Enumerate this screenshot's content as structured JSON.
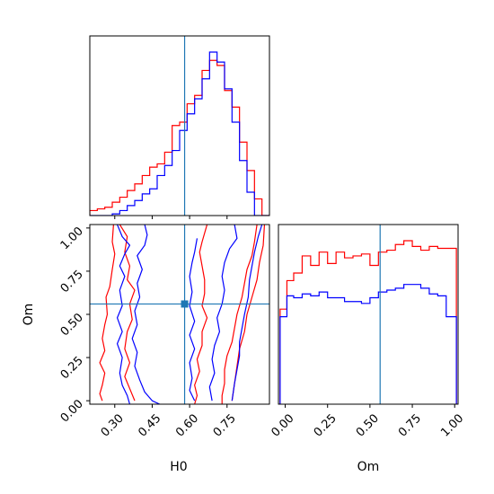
{
  "chart_data": [
    {
      "type": "histogram",
      "panel": "H0 marginal",
      "x_range": [
        0.2,
        0.92
      ],
      "bins": [
        0.2,
        0.23,
        0.26,
        0.29,
        0.32,
        0.35,
        0.38,
        0.41,
        0.44,
        0.47,
        0.5,
        0.53,
        0.56,
        0.59,
        0.62,
        0.65,
        0.68,
        0.71,
        0.74,
        0.77,
        0.8,
        0.83,
        0.86,
        0.89,
        0.92
      ],
      "series": [
        {
          "color": "#ff0000",
          "counts": [
            3,
            4,
            5,
            8,
            11,
            15,
            19,
            24,
            29,
            31,
            38,
            54,
            56,
            67,
            72,
            87,
            93,
            90,
            75,
            65,
            44,
            27,
            10,
            0
          ]
        },
        {
          "color": "#0000ff",
          "counts": [
            0,
            0,
            0,
            1,
            3,
            6,
            9,
            13,
            16,
            24,
            30,
            39,
            51,
            61,
            70,
            82,
            98,
            92,
            76,
            56,
            33,
            14,
            0,
            0
          ]
        }
      ],
      "truth_x": 0.58
    },
    {
      "type": "contour",
      "panel": "H0 vs Om",
      "xlabel": "H0",
      "ylabel": "Om",
      "x_range": [
        0.2,
        0.92
      ],
      "y_range": [
        -0.02,
        1.02
      ],
      "x_ticks": [
        "0.30",
        "0.45",
        "0.60",
        "0.75"
      ],
      "y_ticks": [
        "0.00",
        "0.25",
        "0.50",
        "0.75",
        "1.00"
      ],
      "truth": {
        "x": 0.58,
        "y": 0.56
      },
      "series": [
        {
          "color": "#ff0000",
          "contours": [
            [
              [
                0.295,
                1.02
              ],
              [
                0.29,
                0.92
              ],
              [
                0.3,
                0.85
              ],
              [
                0.29,
                0.76
              ],
              [
                0.28,
                0.66
              ],
              [
                0.265,
                0.6
              ],
              [
                0.27,
                0.5
              ],
              [
                0.26,
                0.44
              ],
              [
                0.25,
                0.36
              ],
              [
                0.26,
                0.29
              ],
              [
                0.24,
                0.22
              ],
              [
                0.26,
                0.16
              ],
              [
                0.25,
                0.09
              ],
              [
                0.24,
                0.04
              ],
              [
                0.25,
                0.0
              ]
            ],
            [
              [
                0.32,
                1.02
              ],
              [
                0.35,
                0.95
              ],
              [
                0.34,
                0.86
              ],
              [
                0.36,
                0.78
              ],
              [
                0.35,
                0.7
              ],
              [
                0.38,
                0.64
              ],
              [
                0.36,
                0.56
              ],
              [
                0.37,
                0.47
              ],
              [
                0.35,
                0.4
              ],
              [
                0.34,
                0.3
              ],
              [
                0.36,
                0.22
              ],
              [
                0.34,
                0.14
              ],
              [
                0.36,
                0.07
              ],
              [
                0.38,
                0.0
              ]
            ],
            [
              [
                0.67,
                1.02
              ],
              [
                0.65,
                0.92
              ],
              [
                0.64,
                0.86
              ],
              [
                0.65,
                0.78
              ],
              [
                0.66,
                0.7
              ],
              [
                0.66,
                0.62
              ],
              [
                0.65,
                0.55
              ],
              [
                0.67,
                0.48
              ],
              [
                0.65,
                0.4
              ],
              [
                0.65,
                0.32
              ],
              [
                0.63,
                0.24
              ],
              [
                0.64,
                0.17
              ],
              [
                0.62,
                0.09
              ],
              [
                0.63,
                0.03
              ],
              [
                0.62,
                -0.02
              ]
            ],
            [
              [
                0.87,
                1.02
              ],
              [
                0.86,
                0.92
              ],
              [
                0.85,
                0.84
              ],
              [
                0.83,
                0.76
              ],
              [
                0.82,
                0.68
              ],
              [
                0.81,
                0.6
              ],
              [
                0.79,
                0.5
              ],
              [
                0.78,
                0.42
              ],
              [
                0.77,
                0.34
              ],
              [
                0.75,
                0.26
              ],
              [
                0.74,
                0.18
              ],
              [
                0.74,
                0.1
              ],
              [
                0.73,
                0.03
              ],
              [
                0.73,
                -0.02
              ]
            ],
            [
              [
                0.9,
                1.02
              ],
              [
                0.895,
                0.9
              ],
              [
                0.88,
                0.8
              ],
              [
                0.87,
                0.7
              ],
              [
                0.85,
                0.6
              ],
              [
                0.83,
                0.5
              ],
              [
                0.82,
                0.4
              ],
              [
                0.8,
                0.3
              ],
              [
                0.79,
                0.2
              ],
              [
                0.78,
                0.1
              ],
              [
                0.77,
                0.0
              ]
            ]
          ]
        },
        {
          "color": "#0000ff",
          "contours": [
            [
              [
                0.31,
                1.02
              ],
              [
                0.33,
                0.95
              ],
              [
                0.36,
                0.9
              ],
              [
                0.34,
                0.85
              ],
              [
                0.32,
                0.78
              ],
              [
                0.34,
                0.72
              ],
              [
                0.32,
                0.64
              ],
              [
                0.33,
                0.55
              ],
              [
                0.31,
                0.48
              ],
              [
                0.33,
                0.4
              ],
              [
                0.31,
                0.33
              ],
              [
                0.33,
                0.25
              ],
              [
                0.32,
                0.16
              ],
              [
                0.33,
                0.09
              ],
              [
                0.35,
                0.03
              ],
              [
                0.36,
                -0.02
              ]
            ],
            [
              [
                0.42,
                1.02
              ],
              [
                0.43,
                0.96
              ],
              [
                0.42,
                0.9
              ],
              [
                0.39,
                0.84
              ],
              [
                0.41,
                0.76
              ],
              [
                0.39,
                0.68
              ],
              [
                0.4,
                0.6
              ],
              [
                0.38,
                0.52
              ],
              [
                0.39,
                0.44
              ],
              [
                0.37,
                0.36
              ],
              [
                0.39,
                0.28
              ],
              [
                0.38,
                0.2
              ],
              [
                0.4,
                0.12
              ],
              [
                0.42,
                0.05
              ],
              [
                0.45,
                0.0
              ],
              [
                0.48,
                -0.02
              ]
            ],
            [
              [
                0.63,
                0.94
              ],
              [
                0.62,
                0.86
              ],
              [
                0.61,
                0.8
              ],
              [
                0.6,
                0.72
              ],
              [
                0.61,
                0.63
              ],
              [
                0.6,
                0.55
              ],
              [
                0.62,
                0.46
              ],
              [
                0.6,
                0.38
              ],
              [
                0.62,
                0.3
              ],
              [
                0.6,
                0.22
              ],
              [
                0.61,
                0.13
              ],
              [
                0.6,
                0.06
              ],
              [
                0.62,
                0.0
              ]
            ],
            [
              [
                0.78,
                1.02
              ],
              [
                0.79,
                0.94
              ],
              [
                0.76,
                0.88
              ],
              [
                0.74,
                0.8
              ],
              [
                0.73,
                0.72
              ],
              [
                0.74,
                0.64
              ],
              [
                0.73,
                0.56
              ],
              [
                0.71,
                0.48
              ],
              [
                0.72,
                0.4
              ],
              [
                0.7,
                0.32
              ],
              [
                0.69,
                0.24
              ],
              [
                0.7,
                0.16
              ],
              [
                0.68,
                0.08
              ],
              [
                0.69,
                0.0
              ]
            ],
            [
              [
                0.89,
                1.02
              ],
              [
                0.875,
                0.95
              ],
              [
                0.86,
                0.86
              ],
              [
                0.85,
                0.78
              ],
              [
                0.84,
                0.7
              ],
              [
                0.835,
                0.6
              ],
              [
                0.82,
                0.5
              ],
              [
                0.81,
                0.42
              ],
              [
                0.8,
                0.34
              ],
              [
                0.8,
                0.26
              ],
              [
                0.79,
                0.18
              ],
              [
                0.78,
                0.1
              ],
              [
                0.77,
                0.0
              ]
            ]
          ]
        }
      ]
    },
    {
      "type": "histogram",
      "panel": "Om marginal",
      "xlabel": "Om",
      "x_range": [
        -0.04,
        1.02
      ],
      "x_ticks": [
        "0.00",
        "0.25",
        "0.50",
        "0.75",
        "1.00"
      ],
      "bins": [
        -0.03,
        0.01,
        0.05,
        0.1,
        0.15,
        0.2,
        0.25,
        0.3,
        0.35,
        0.4,
        0.45,
        0.5,
        0.55,
        0.6,
        0.65,
        0.7,
        0.75,
        0.8,
        0.85,
        0.9,
        0.95,
        1.01
      ],
      "series": [
        {
          "color": "#ff0000",
          "counts": [
            50,
            65,
            69,
            78,
            73,
            80,
            74,
            80,
            77,
            78,
            79,
            73,
            80,
            81,
            84,
            86,
            83,
            81,
            83,
            82,
            82
          ]
        },
        {
          "color": "#0000ff",
          "counts": [
            46,
            57,
            56,
            58,
            57,
            59,
            56,
            56,
            54,
            54,
            53,
            56,
            59,
            60,
            61,
            63,
            63,
            61,
            58,
            57,
            46
          ]
        }
      ],
      "truth_x": 0.56
    }
  ]
}
